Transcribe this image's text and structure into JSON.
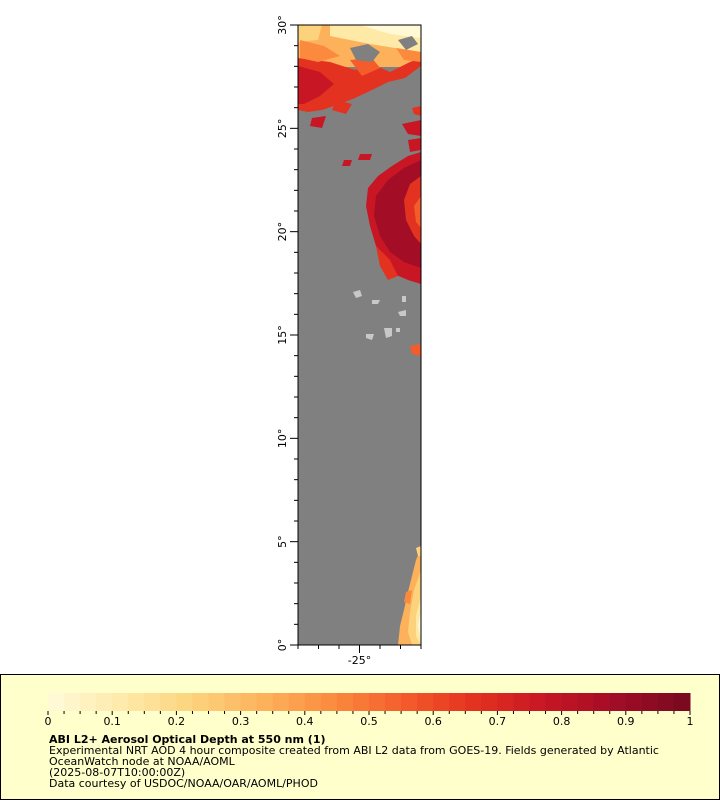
{
  "colors": {
    "ocean": "#808080",
    "land": "#c8c8c8",
    "legend_bg": "#ffffcc",
    "scale": [
      "#fff9d6",
      "#fee9a6",
      "#fdd27c",
      "#fdb15a",
      "#fb8a3f",
      "#f45c2b",
      "#e3321f",
      "#c81624",
      "#a30d26",
      "#7b0a20"
    ]
  },
  "map": {
    "y_ticks": [
      {
        "value": 30,
        "label": "30°"
      },
      {
        "value": 25,
        "label": "25°"
      },
      {
        "value": 20,
        "label": "20°"
      },
      {
        "value": 15,
        "label": "15°"
      },
      {
        "value": 10,
        "label": "10°"
      },
      {
        "value": 5,
        "label": "5°"
      },
      {
        "value": 0,
        "label": "0°"
      }
    ],
    "x_ticks": [
      {
        "value": -25,
        "label": "-25°"
      }
    ]
  },
  "legend": {
    "ticks": [
      "0",
      "0.1",
      "0.2",
      "0.3",
      "0.4",
      "0.5",
      "0.6",
      "0.7",
      "0.8",
      "0.9",
      "1"
    ],
    "title": "ABI L2+ Aerosol Optical Depth at 550 nm (1)",
    "description_1": "Experimental NRT AOD 4 hour composite created from ABI L2 data from GOES-19. Fields generated by Atlantic",
    "description_2": "OceanWatch node at NOAA/AOML",
    "description_3": "(2025-08-07T10:00:00Z)",
    "credit": "Data courtesy of USDOC/NOAA/OAR/AOML/PHOD"
  }
}
